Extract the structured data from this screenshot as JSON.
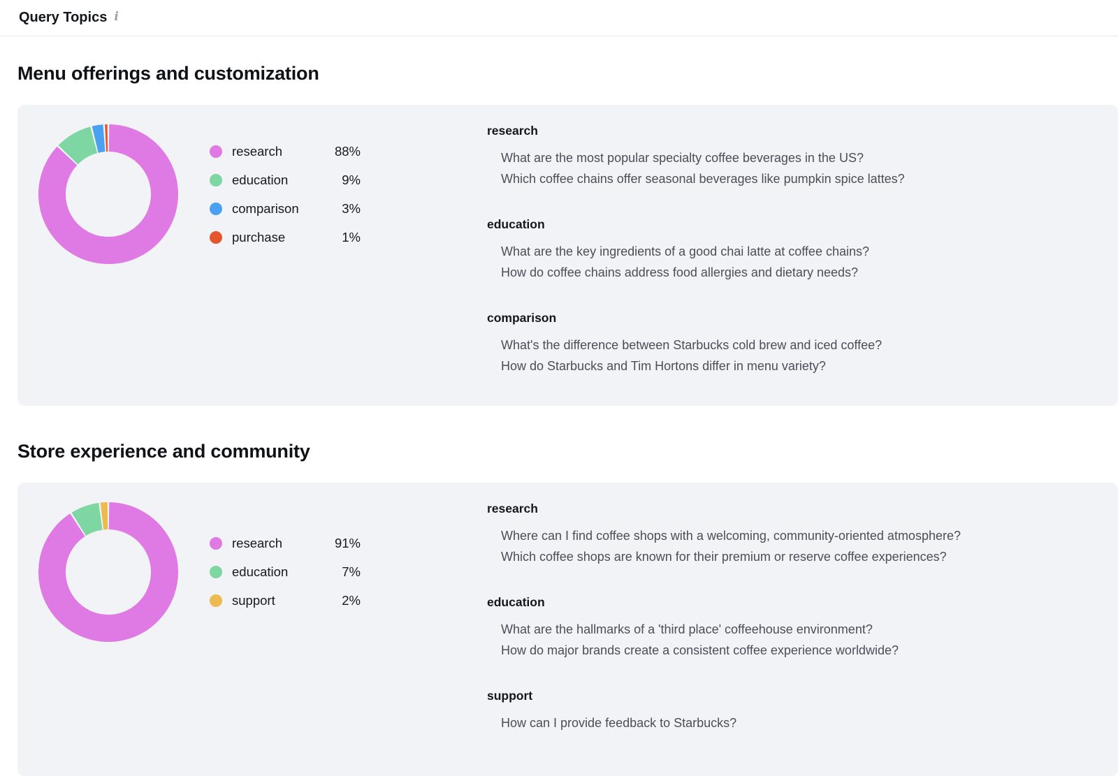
{
  "header": {
    "title": "Query Topics",
    "info_icon": "i"
  },
  "sections": [
    {
      "title": "Menu offerings and customization",
      "legend": [
        {
          "label": "research",
          "percent": 88,
          "display": "88%",
          "color": "#df7ae5"
        },
        {
          "label": "education",
          "percent": 9,
          "display": "9%",
          "color": "#7ed6a2"
        },
        {
          "label": "comparison",
          "percent": 3,
          "display": "3%",
          "color": "#4aa1f1"
        },
        {
          "label": "purchase",
          "percent": 1,
          "display": "1%",
          "color": "#e2572e"
        }
      ],
      "groups": [
        {
          "name": "research",
          "queries": [
            "What are the most popular specialty coffee beverages in the US?",
            "Which coffee chains offer seasonal beverages like pumpkin spice lattes?"
          ]
        },
        {
          "name": "education",
          "queries": [
            "What are the key ingredients of a good chai latte at coffee chains?",
            "How do coffee chains address food allergies and dietary needs?"
          ]
        },
        {
          "name": "comparison",
          "queries": [
            "What's the difference between Starbucks cold brew and iced coffee?",
            "How do Starbucks and Tim Hortons differ in menu variety?"
          ]
        }
      ]
    },
    {
      "title": "Store experience and community",
      "legend": [
        {
          "label": "research",
          "percent": 91,
          "display": "91%",
          "color": "#df7ae5"
        },
        {
          "label": "education",
          "percent": 7,
          "display": "7%",
          "color": "#7ed6a2"
        },
        {
          "label": "support",
          "percent": 2,
          "display": "2%",
          "color": "#ecba4e"
        }
      ],
      "groups": [
        {
          "name": "research",
          "queries": [
            "Where can I find coffee shops with a welcoming, community-oriented atmosphere?",
            "Which coffee shops are known for their premium or reserve coffee experiences?"
          ]
        },
        {
          "name": "education",
          "queries": [
            "What are the hallmarks of a 'third place' coffeehouse environment?",
            "How do major brands create a consistent coffee experience worldwide?"
          ]
        },
        {
          "name": "support",
          "queries": [
            "How can I provide feedback to Starbucks?"
          ]
        }
      ]
    }
  ],
  "chart_data": [
    {
      "type": "pie",
      "donut": true,
      "title": "Menu offerings and customization",
      "labels": [
        "research",
        "education",
        "comparison",
        "purchase"
      ],
      "values": [
        88,
        9,
        3,
        1
      ],
      "unit": "%",
      "colors": [
        "#df7ae5",
        "#7ed6a2",
        "#4aa1f1",
        "#e2572e"
      ],
      "legend_position": "right"
    },
    {
      "type": "pie",
      "donut": true,
      "title": "Store experience and community",
      "labels": [
        "research",
        "education",
        "support"
      ],
      "values": [
        91,
        7,
        2
      ],
      "unit": "%",
      "colors": [
        "#df7ae5",
        "#7ed6a2",
        "#ecba4e"
      ],
      "legend_position": "right"
    }
  ],
  "colors": {
    "panel_bg": "#f2f3f7",
    "divider": "#e7e8ec",
    "heading_text": "#101217",
    "query_text": "#4a4e57",
    "info_icon": "#9ba1aa"
  }
}
